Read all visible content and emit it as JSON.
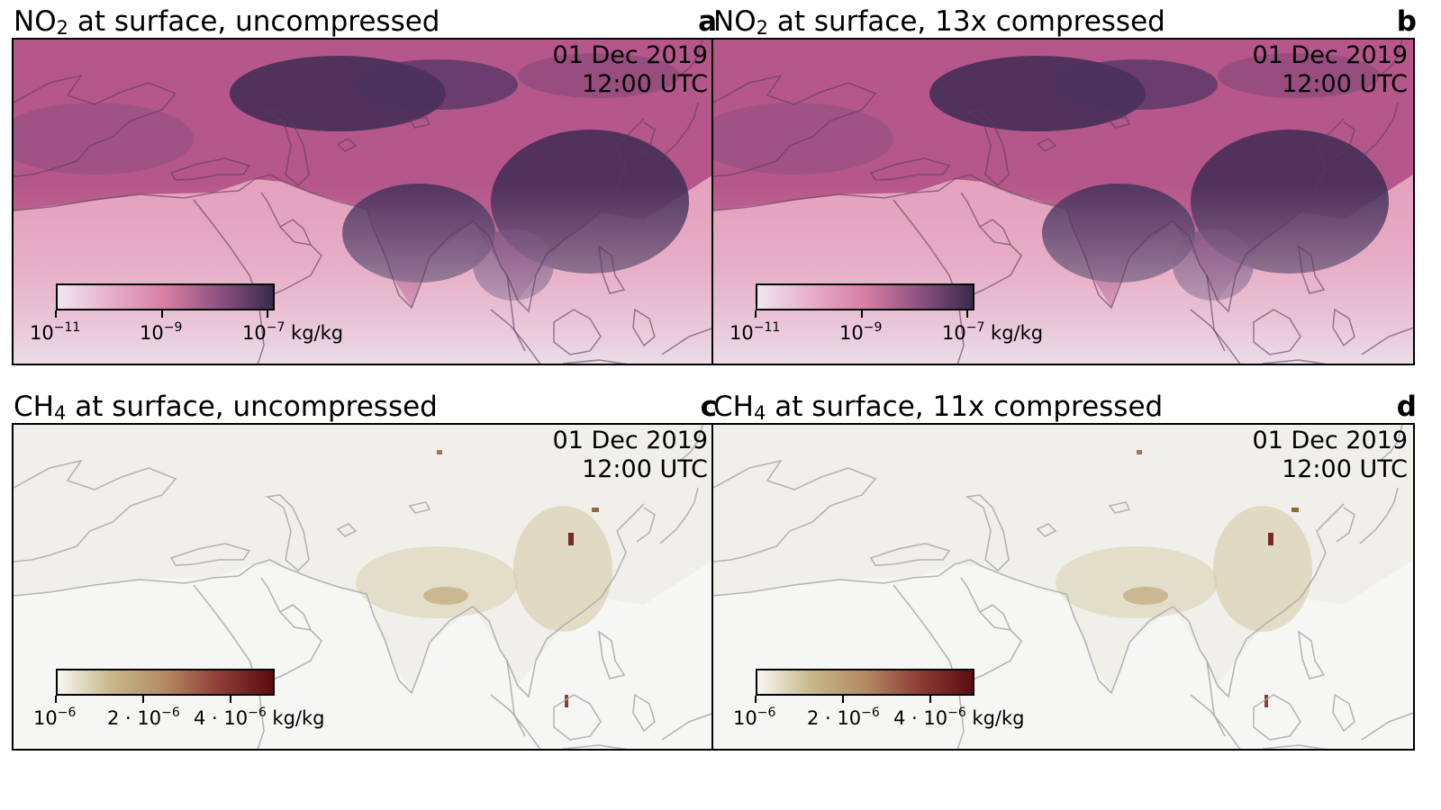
{
  "panels": [
    {
      "title_base": "NO",
      "title_sub": "2",
      "title_rest": " at surface, uncompressed",
      "letter": "a",
      "date": "01 Dec 2019",
      "time": "12:00 UTC",
      "colorbar": {
        "gradient": [
          "#efe6ee",
          "#e7aec6",
          "#d67fa3",
          "#8e5280",
          "#3b2a4c"
        ],
        "ticks": [
          {
            "base": "10",
            "exp": "−11",
            "suffix": ""
          },
          {
            "base": "10",
            "exp": "−9",
            "suffix": ""
          },
          {
            "base": "10",
            "exp": "−7",
            "suffix": " kg/kg"
          }
        ]
      },
      "map": {
        "ocean": "#e9aac3",
        "ocean_fade": "#eef0f5",
        "land": "#b34f7f",
        "dark": "#3e2b55",
        "outline": "#5a3a5c"
      }
    },
    {
      "title_base": "NO",
      "title_sub": "2",
      "title_rest": " at surface, 13x compressed",
      "letter": "b",
      "date": "01 Dec 2019",
      "time": "12:00 UTC",
      "colorbar": {
        "gradient": [
          "#efe6ee",
          "#e7aec6",
          "#d67fa3",
          "#8e5280",
          "#3b2a4c"
        ],
        "ticks": [
          {
            "base": "10",
            "exp": "−11",
            "suffix": ""
          },
          {
            "base": "10",
            "exp": "−9",
            "suffix": ""
          },
          {
            "base": "10",
            "exp": "−7",
            "suffix": " kg/kg"
          }
        ]
      },
      "map": {
        "ocean": "#e9aac3",
        "ocean_fade": "#eef0f5",
        "land": "#b34f7f",
        "dark": "#3e2b55",
        "outline": "#5a3a5c"
      }
    },
    {
      "title_base": "CH",
      "title_sub": "4",
      "title_rest": " at surface, uncompressed",
      "letter": "c",
      "date": "01 Dec 2019",
      "time": "12:00 UTC",
      "colorbar": {
        "gradient": [
          "#f7f6f2",
          "#c7b889",
          "#b38a63",
          "#8e3d36",
          "#5a0c10"
        ],
        "ticks": [
          {
            "base": "10",
            "exp": "−6",
            "suffix": ""
          },
          {
            "base": "2 · 10",
            "exp": "−6",
            "suffix": ""
          },
          {
            "base": "4 · 10",
            "exp": "−6",
            "suffix": " kg/kg"
          }
        ]
      },
      "map": {
        "ocean": "#f6f6f5",
        "ocean_fade": "#f9f9f8",
        "land": "#eceadf",
        "dark": "#b9a67a",
        "outline": "#b3b3b3"
      }
    },
    {
      "title_base": "CH",
      "title_sub": "4",
      "title_rest": " at surface, 11x compressed",
      "letter": "d",
      "date": "01 Dec 2019",
      "time": "12:00 UTC",
      "colorbar": {
        "gradient": [
          "#f7f6f2",
          "#c7b889",
          "#b38a63",
          "#8e3d36",
          "#5a0c10"
        ],
        "ticks": [
          {
            "base": "10",
            "exp": "−6",
            "suffix": ""
          },
          {
            "base": "2 · 10",
            "exp": "−6",
            "suffix": ""
          },
          {
            "base": "4 · 10",
            "exp": "−6",
            "suffix": " kg/kg"
          }
        ]
      },
      "map": {
        "ocean": "#f6f6f5",
        "ocean_fade": "#f9f9f8",
        "land": "#eceadf",
        "dark": "#b9a67a",
        "outline": "#b3b3b3"
      }
    }
  ]
}
